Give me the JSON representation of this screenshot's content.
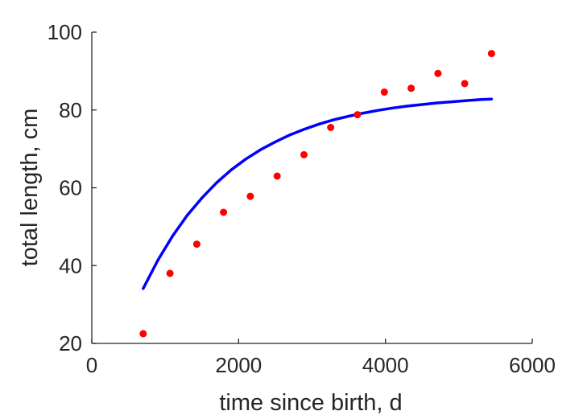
{
  "chart_data": {
    "type": "scatter",
    "title": "",
    "xlabel": "time since birth, d",
    "ylabel": "total length, cm",
    "xlim": [
      0,
      6000
    ],
    "ylim": [
      20,
      100
    ],
    "xticks": [
      0,
      2000,
      4000,
      6000
    ],
    "yticks": [
      20,
      40,
      60,
      80,
      100
    ],
    "grid": false,
    "colors": {
      "points": "#ff0000",
      "line": "#0000ff",
      "axis": "#262626"
    },
    "series": [
      {
        "kind": "points",
        "x": [
          700,
          1065,
          1430,
          1795,
          2160,
          2525,
          2890,
          3255,
          3620,
          3985,
          4350,
          4715,
          5080,
          5445
        ],
        "y": [
          22.5,
          38,
          45.5,
          53.7,
          57.8,
          63,
          68.5,
          75.5,
          78.8,
          84.6,
          85.6,
          89.4,
          86.8,
          94.5
        ]
      },
      {
        "kind": "line",
        "x": [
          700,
          900,
          1100,
          1300,
          1500,
          1700,
          1900,
          2100,
          2300,
          2500,
          2700,
          2900,
          3100,
          3300,
          3500,
          3700,
          3900,
          4100,
          4300,
          4500,
          4700,
          4900,
          5100,
          5300,
          5445
        ],
        "y": [
          34.1,
          41.4,
          47.6,
          52.9,
          57.4,
          61.3,
          64.6,
          67.4,
          69.8,
          71.8,
          73.6,
          75.1,
          76.4,
          77.5,
          78.4,
          79.2,
          79.9,
          80.5,
          81.0,
          81.4,
          81.8,
          82.1,
          82.4,
          82.7,
          82.8
        ]
      }
    ]
  }
}
